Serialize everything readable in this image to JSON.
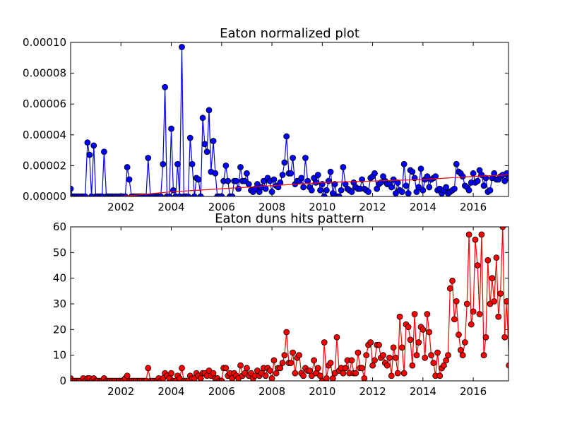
{
  "chart_data": [
    {
      "type": "line",
      "title": "Eaton normalized plot",
      "xlabel": "",
      "ylabel": "",
      "xlim": [
        2000.0,
        2017.4
      ],
      "ylim": [
        0,
        0.0001
      ],
      "x_tick_labels": [
        "2002",
        "2004",
        "2006",
        "2008",
        "2010",
        "2012",
        "2014",
        "2016"
      ],
      "y_tick_labels": [
        "0.00000",
        "0.00002",
        "0.00004",
        "0.00006",
        "0.00008",
        "0.00010"
      ],
      "grid": false,
      "series": [
        {
          "color": "#0000ff",
          "marker": "circle",
          "x": [
            2000.0,
            2000.08,
            2000.17,
            2000.25,
            2000.33,
            2000.42,
            2000.5,
            2000.58,
            2000.67,
            2000.75,
            2000.83,
            2000.92,
            2001.0,
            2001.08,
            2001.17,
            2001.25,
            2001.33,
            2001.42,
            2001.5,
            2001.58,
            2001.67,
            2001.75,
            2001.83,
            2001.92,
            2002.0,
            2002.08,
            2002.17,
            2002.25,
            2002.33,
            2002.42,
            2002.5,
            2002.58,
            2002.67,
            2002.75,
            2002.83,
            2002.92,
            2003.0,
            2003.08,
            2003.17,
            2003.25,
            2003.33,
            2003.42,
            2003.5,
            2003.58,
            2003.67,
            2003.75,
            2003.83,
            2003.92,
            2004.0,
            2004.08,
            2004.17,
            2004.25,
            2004.33,
            2004.42,
            2004.5,
            2004.58,
            2004.67,
            2004.75,
            2004.83,
            2004.92,
            2005.0,
            2005.08,
            2005.17,
            2005.25,
            2005.33,
            2005.42,
            2005.5,
            2005.58,
            2005.67,
            2005.75,
            2005.83,
            2005.92,
            2006.0,
            2006.08,
            2006.17,
            2006.25,
            2006.33,
            2006.42,
            2006.5,
            2006.58,
            2006.67,
            2006.75,
            2006.83,
            2006.92,
            2007.0,
            2007.08,
            2007.17,
            2007.25,
            2007.33,
            2007.42,
            2007.5,
            2007.58,
            2007.67,
            2007.75,
            2007.83,
            2007.92,
            2008.0,
            2008.08,
            2008.17,
            2008.25,
            2008.33,
            2008.42,
            2008.5,
            2008.58,
            2008.67,
            2008.75,
            2008.83,
            2008.92,
            2009.0,
            2009.08,
            2009.17,
            2009.25,
            2009.33,
            2009.42,
            2009.5,
            2009.58,
            2009.67,
            2009.75,
            2009.83,
            2009.92,
            2010.0,
            2010.08,
            2010.17,
            2010.25,
            2010.33,
            2010.42,
            2010.5,
            2010.58,
            2010.67,
            2010.75,
            2010.83,
            2010.92,
            2011.0,
            2011.08,
            2011.17,
            2011.25,
            2011.33,
            2011.42,
            2011.5,
            2011.58,
            2011.67,
            2011.75,
            2011.83,
            2011.92,
            2012.0,
            2012.08,
            2012.17,
            2012.25,
            2012.33,
            2012.42,
            2012.5,
            2012.58,
            2012.67,
            2012.75,
            2012.83,
            2012.92,
            2013.0,
            2013.08,
            2013.17,
            2013.25,
            2013.33,
            2013.42,
            2013.5,
            2013.58,
            2013.67,
            2013.75,
            2013.83,
            2013.92,
            2014.0,
            2014.08,
            2014.17,
            2014.25,
            2014.33,
            2014.42,
            2014.5,
            2014.58,
            2014.67,
            2014.75,
            2014.83,
            2014.92,
            2015.0,
            2015.08,
            2015.17,
            2015.25,
            2015.33,
            2015.42,
            2015.5,
            2015.58,
            2015.67,
            2015.75,
            2015.83,
            2015.92,
            2016.0,
            2016.08,
            2016.17,
            2016.25,
            2016.33,
            2016.42,
            2016.5,
            2016.58,
            2016.67,
            2016.75,
            2016.83,
            2016.92,
            2017.0,
            2017.08,
            2017.17,
            2017.25,
            2017.33,
            2017.42
          ],
          "values": [
            5e-06,
            0.0,
            0.0,
            0.0,
            0.0,
            0.0,
            0.0,
            0.0,
            3.5e-05,
            2.7e-05,
            0.0,
            3.3e-05,
            0.0,
            0.0,
            0.0,
            0.0,
            2.9e-05,
            0.0,
            0.0,
            0.0,
            0.0,
            0.0,
            0.0,
            0.0,
            0.0,
            0.0,
            0.0,
            1.9e-05,
            1.1e-05,
            0.0,
            0.0,
            0.0,
            0.0,
            0.0,
            0.0,
            0.0,
            0.0,
            2.5e-05,
            0.0,
            0.0,
            0.0,
            0.0,
            0.0,
            0.0,
            2.1e-05,
            7.1e-05,
            0.0,
            0.0,
            4.4e-05,
            4e-06,
            0.0,
            2.1e-05,
            0.0,
            9.7e-05,
            0.0,
            0.0,
            0.0,
            3.8e-05,
            2.1e-05,
            0.0,
            1.2e-05,
            1.1e-05,
            0.0,
            5.1e-05,
            3.4e-05,
            2.9e-05,
            5.6e-05,
            1.6e-05,
            3.6e-05,
            1.5e-05,
            0.0,
            0.0,
            0.0,
            1e-05,
            2e-05,
            1e-05,
            0.0,
            0.0,
            1e-05,
            1e-05,
            5e-06,
            1.9e-05,
            1e-05,
            1e-05,
            1.5e-05,
            8e-06,
            4e-06,
            3e-06,
            5e-06,
            8e-06,
            3e-06,
            6e-06,
            1e-05,
            5e-06,
            1.2e-05,
            1e-05,
            3e-06,
            1.1e-05,
            7e-06,
            6e-06,
            9e-06,
            1.4e-05,
            2.2e-05,
            3.9e-05,
            1.5e-05,
            1.5e-05,
            2.5e-05,
            8e-06,
            1e-05,
            1e-05,
            1.2e-05,
            6e-06,
            2.5e-05,
            1e-05,
            6e-06,
            4e-06,
            1.2e-05,
            9e-06,
            1.4e-05,
            4e-06,
            8e-06,
            0.0,
            4e-06,
            1e-05,
            1.6e-05,
            2e-06,
            8e-06,
            0.0,
            0.0,
            4e-06,
            1.9e-05,
            8e-06,
            5e-06,
            4e-06,
            3e-06,
            9e-06,
            6e-06,
            5e-06,
            5e-06,
            1.1e-05,
            5e-06,
            4e-06,
            3e-06,
            1.2e-05,
            1.3e-05,
            1.5e-05,
            5e-06,
            8e-06,
            9e-06,
            1.3e-05,
            1e-05,
            8e-06,
            8e-06,
            6e-06,
            1.1e-05,
            2e-06,
            9e-06,
            4e-06,
            3e-06,
            2.1e-05,
            7e-06,
            2e-06,
            1.7e-05,
            1.6e-05,
            1.2e-05,
            3e-06,
            6e-06,
            1.8e-05,
            4e-06,
            1.1e-05,
            1.3e-05,
            6e-06,
            1.1e-05,
            1.2e-05,
            1.3e-05,
            4e-06,
            5e-06,
            2e-06,
            4e-06,
            6e-06,
            2e-06,
            3e-06,
            4e-06,
            5e-06,
            2.1e-05,
            1.6e-05,
            1.5e-05,
            1.3e-05,
            7e-06,
            6e-06,
            4e-06,
            9e-06,
            1.5e-05,
            9e-06,
            1e-05,
            1.7e-05,
            1.4e-05,
            7e-06,
            1.2e-05,
            3e-06,
            4e-06,
            1.2e-05,
            1.5e-05,
            1.1e-05,
            1.1e-05,
            1.3e-05,
            1.4e-05,
            1e-05,
            1.5e-05,
            1.2e-05
          ]
        },
        {
          "color": "#ff0000",
          "marker": "none",
          "x": [
            2000.0,
            2002.0,
            2004.0,
            2006.0,
            2008.0,
            2010.0,
            2012.0,
            2014.0,
            2016.0,
            2017.42
          ],
          "values": [
            0.0,
            0.0,
            3e-06,
            5e-06,
            7e-06,
            9e-06,
            1e-05,
            1.1e-05,
            1.3e-05,
            1.4e-05
          ]
        }
      ]
    },
    {
      "type": "line",
      "title": "Eaton duns hits pattern",
      "xlabel": "",
      "ylabel": "",
      "xlim": [
        2000.0,
        2017.4
      ],
      "ylim": [
        0,
        60
      ],
      "x_tick_labels": [
        "2002",
        "2004",
        "2006",
        "2008",
        "2010",
        "2012",
        "2014",
        "2016"
      ],
      "y_tick_labels": [
        "0",
        "10",
        "20",
        "30",
        "40",
        "50",
        "60"
      ],
      "grid": false,
      "series": [
        {
          "color": "#ff0000",
          "marker": "circle",
          "x": [
            2000.0,
            2000.08,
            2000.17,
            2000.25,
            2000.33,
            2000.42,
            2000.5,
            2000.58,
            2000.67,
            2000.75,
            2000.83,
            2000.92,
            2001.0,
            2001.08,
            2001.17,
            2001.25,
            2001.33,
            2001.42,
            2001.5,
            2001.58,
            2001.67,
            2001.75,
            2001.83,
            2001.92,
            2002.0,
            2002.08,
            2002.17,
            2002.25,
            2002.33,
            2002.42,
            2002.5,
            2002.58,
            2002.67,
            2002.75,
            2002.83,
            2002.92,
            2003.0,
            2003.08,
            2003.17,
            2003.25,
            2003.33,
            2003.42,
            2003.5,
            2003.58,
            2003.67,
            2003.75,
            2003.83,
            2003.92,
            2004.0,
            2004.08,
            2004.17,
            2004.25,
            2004.33,
            2004.42,
            2004.5,
            2004.58,
            2004.67,
            2004.75,
            2004.83,
            2004.92,
            2005.0,
            2005.08,
            2005.17,
            2005.25,
            2005.33,
            2005.42,
            2005.5,
            2005.58,
            2005.67,
            2005.75,
            2005.83,
            2005.92,
            2006.0,
            2006.08,
            2006.17,
            2006.25,
            2006.33,
            2006.42,
            2006.5,
            2006.58,
            2006.67,
            2006.75,
            2006.83,
            2006.92,
            2007.0,
            2007.08,
            2007.17,
            2007.25,
            2007.33,
            2007.42,
            2007.5,
            2007.58,
            2007.67,
            2007.75,
            2007.83,
            2007.92,
            2008.0,
            2008.08,
            2008.17,
            2008.25,
            2008.33,
            2008.42,
            2008.5,
            2008.58,
            2008.67,
            2008.75,
            2008.83,
            2008.92,
            2009.0,
            2009.08,
            2009.17,
            2009.25,
            2009.33,
            2009.42,
            2009.5,
            2009.58,
            2009.67,
            2009.75,
            2009.83,
            2009.92,
            2010.0,
            2010.08,
            2010.17,
            2010.25,
            2010.33,
            2010.42,
            2010.5,
            2010.58,
            2010.67,
            2010.75,
            2010.83,
            2010.92,
            2011.0,
            2011.08,
            2011.17,
            2011.25,
            2011.33,
            2011.42,
            2011.5,
            2011.58,
            2011.67,
            2011.75,
            2011.83,
            2011.92,
            2012.0,
            2012.08,
            2012.17,
            2012.25,
            2012.33,
            2012.42,
            2012.5,
            2012.58,
            2012.67,
            2012.75,
            2012.83,
            2012.92,
            2013.0,
            2013.08,
            2013.17,
            2013.25,
            2013.33,
            2013.42,
            2013.5,
            2013.58,
            2013.67,
            2013.75,
            2013.83,
            2013.92,
            2014.0,
            2014.08,
            2014.17,
            2014.25,
            2014.33,
            2014.42,
            2014.5,
            2014.58,
            2014.67,
            2014.75,
            2014.83,
            2014.92,
            2015.0,
            2015.08,
            2015.17,
            2015.25,
            2015.33,
            2015.42,
            2015.5,
            2015.58,
            2015.67,
            2015.75,
            2015.83,
            2015.92,
            2016.0,
            2016.08,
            2016.17,
            2016.25,
            2016.33,
            2016.42,
            2016.5,
            2016.58,
            2016.67,
            2016.75,
            2016.83,
            2016.92,
            2017.0,
            2017.08,
            2017.17,
            2017.25,
            2017.33,
            2017.42
          ],
          "values": [
            1,
            0,
            0,
            0,
            0,
            0,
            1,
            0,
            1,
            1,
            0,
            1,
            0,
            0,
            0,
            0,
            1,
            0,
            0,
            0,
            0,
            0,
            0,
            0,
            0,
            0,
            1,
            2,
            0,
            0,
            0,
            0,
            0,
            0,
            0,
            0,
            0,
            5,
            0,
            0,
            0,
            0,
            1,
            0,
            1,
            3,
            2,
            1,
            3,
            0,
            0,
            2,
            1,
            5,
            0,
            0,
            0,
            2,
            1,
            1,
            3,
            2,
            1,
            3,
            3,
            2,
            4,
            2,
            3,
            1,
            1,
            0,
            0,
            5,
            5,
            2,
            3,
            1,
            3,
            2,
            1,
            6,
            2,
            3,
            5,
            2,
            3,
            1,
            2,
            4,
            2,
            3,
            5,
            2,
            5,
            4,
            1,
            8,
            3,
            5,
            5,
            7,
            10,
            19,
            7,
            7,
            11,
            3,
            9,
            10,
            3,
            2,
            5,
            4,
            4,
            2,
            8,
            3,
            5,
            2,
            0,
            15,
            1,
            6,
            7,
            1,
            3,
            17,
            4,
            5,
            3,
            5,
            8,
            3,
            8,
            3,
            3,
            11,
            5,
            5,
            1,
            10,
            14,
            15,
            6,
            8,
            14,
            14,
            9,
            10,
            7,
            6,
            9,
            2,
            13,
            9,
            3,
            25,
            13,
            3,
            22,
            21,
            16,
            6,
            26,
            10,
            15,
            21,
            20,
            9,
            26,
            19,
            10,
            7,
            2,
            11,
            2,
            5,
            6,
            8,
            10,
            36,
            39,
            24,
            31,
            18,
            12,
            10,
            15,
            30,
            57,
            22,
            27,
            55,
            45,
            26,
            57,
            10,
            17,
            47,
            30,
            40,
            31,
            48,
            25,
            34,
            60,
            17,
            31,
            6
          ]
        }
      ]
    }
  ]
}
